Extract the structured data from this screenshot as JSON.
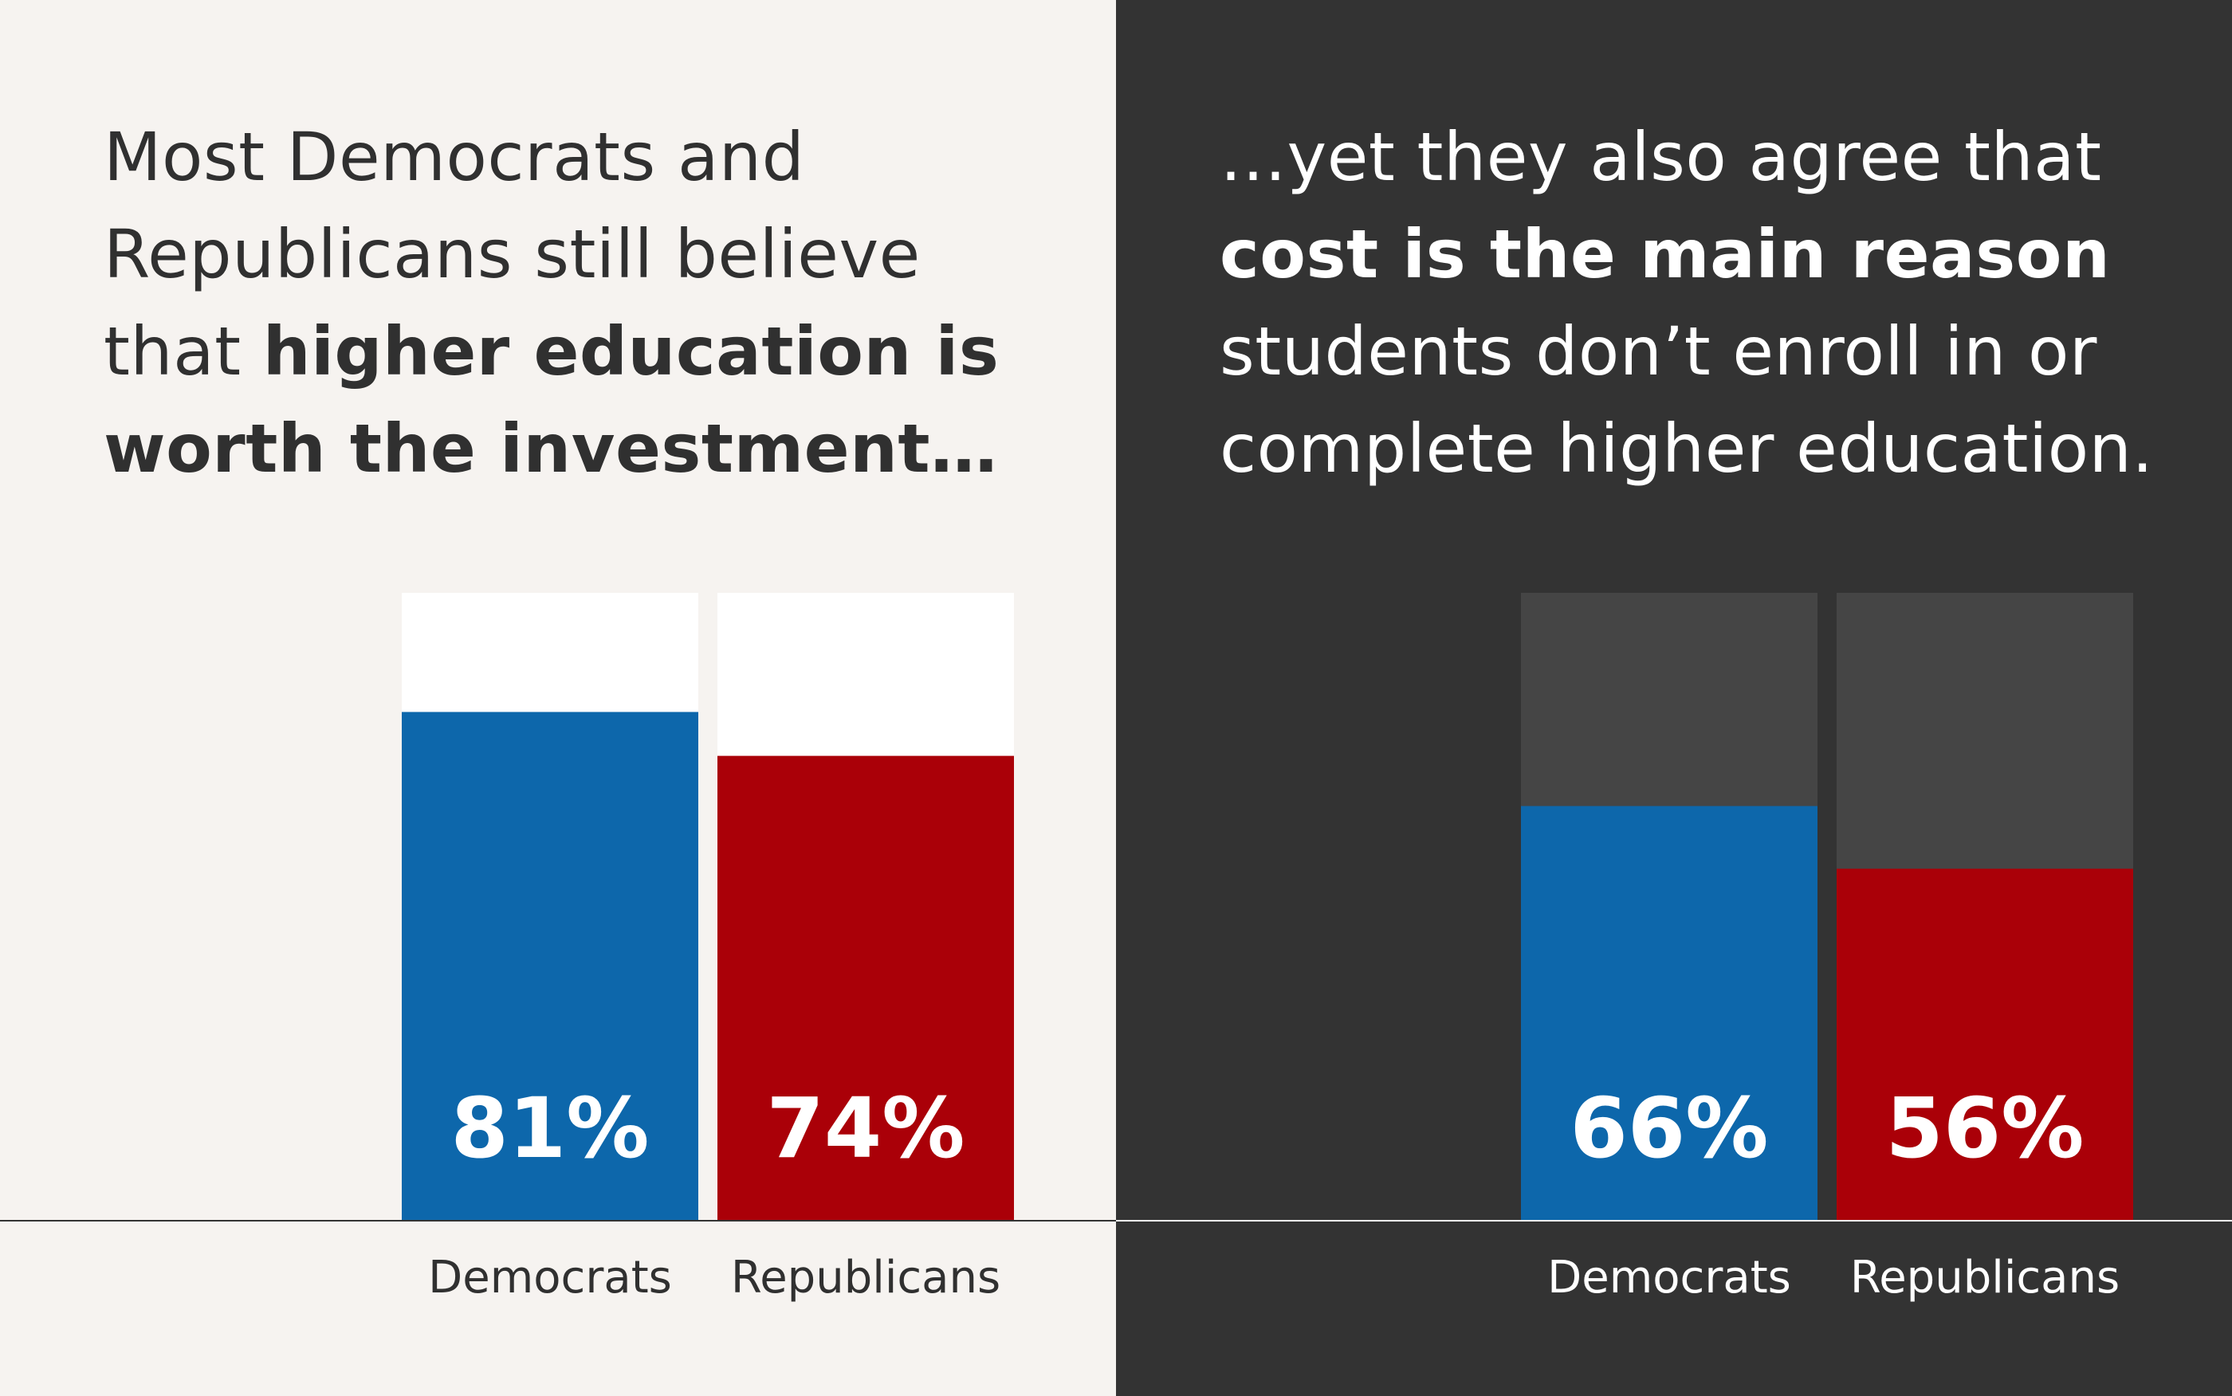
{
  "left": {
    "headline": {
      "lines": [
        [
          {
            "text": "Most Democrats and",
            "bold": false
          }
        ],
        [
          {
            "text": "Republicans still believe",
            "bold": false
          }
        ],
        [
          {
            "text": "that ",
            "bold": false
          },
          {
            "text": "higher education is",
            "bold": true
          }
        ],
        [
          {
            "text": "worth the investment…",
            "bold": true
          }
        ]
      ]
    },
    "colors": {
      "background": "#f6f3f0",
      "track": "#ffffff",
      "text": "#303030",
      "baseline": "#333333"
    }
  },
  "right": {
    "headline": {
      "lines": [
        [
          {
            "text": "…yet they also agree that",
            "bold": false
          }
        ],
        [
          {
            "text": "cost is the main reason",
            "bold": true
          }
        ],
        [
          {
            "text": "students don’t enroll in or",
            "bold": false
          }
        ],
        [
          {
            "text": "complete higher education.",
            "bold": false
          }
        ]
      ]
    },
    "colors": {
      "background": "#333333",
      "track": "#454545",
      "text": "#ffffff",
      "baseline": "#ffffff"
    }
  },
  "chart_data": [
    {
      "type": "bar",
      "title": "Most Democrats and Republicans still believe that higher education is worth the investment…",
      "categories": [
        "Democrats",
        "Republicans"
      ],
      "values": [
        81,
        74
      ],
      "value_labels": [
        "81%",
        "74%"
      ],
      "colors": [
        "#0d67ab",
        "#aa0008"
      ],
      "ylim": [
        0,
        100
      ],
      "xlabel": "",
      "ylabel": ""
    },
    {
      "type": "bar",
      "title": "…yet they also agree that cost is the main reason students don’t enroll in or complete higher education.",
      "categories": [
        "Democrats",
        "Republicans"
      ],
      "values": [
        66,
        56
      ],
      "value_labels": [
        "66%",
        "56%"
      ],
      "colors": [
        "#0d67ab",
        "#aa0008"
      ],
      "ylim": [
        0,
        100
      ],
      "xlabel": "",
      "ylabel": ""
    }
  ]
}
